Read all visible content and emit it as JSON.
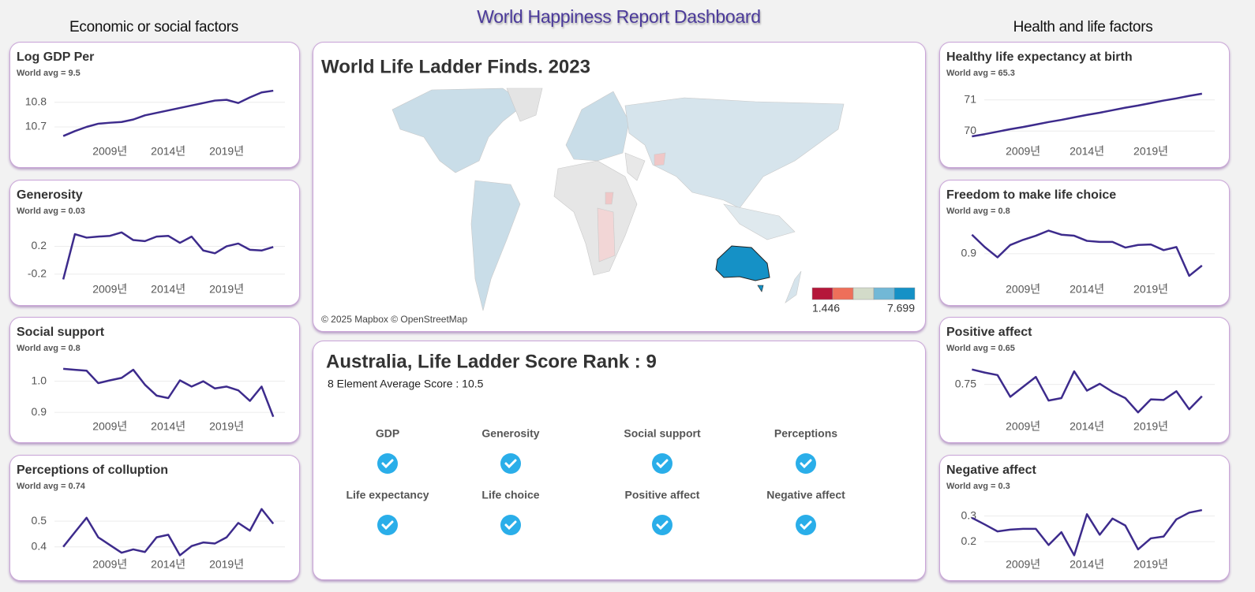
{
  "header": {
    "title": "World Happiness Report Dashboard",
    "left_section": "Economic or social factors",
    "right_section": "Health and life factors"
  },
  "chart_data": [
    {
      "type": "line",
      "title": "Log GDP Per",
      "subtitle": "World avg = 9.5",
      "color": "#3d2b8c",
      "x": [
        2005,
        2006,
        2007,
        2008,
        2009,
        2010,
        2011,
        2012,
        2013,
        2014,
        2015,
        2016,
        2017,
        2018,
        2019,
        2020,
        2021,
        2022,
        2023
      ],
      "values": [
        10.663,
        10.683,
        10.7,
        10.713,
        10.717,
        10.72,
        10.73,
        10.747,
        10.757,
        10.767,
        10.777,
        10.787,
        10.797,
        10.807,
        10.81,
        10.797,
        10.82,
        10.84,
        10.847
      ],
      "xlim": [
        2001,
        2024
      ],
      "ylim": [
        10.62,
        10.86
      ],
      "yticks": [
        10.7,
        10.8
      ],
      "xticks": [
        {
          "value": 2009,
          "label": "2009년"
        },
        {
          "value": 2014,
          "label": "2014년"
        },
        {
          "value": 2019,
          "label": "2019년"
        }
      ],
      "grid": true
    },
    {
      "type": "line",
      "title": "Generosity",
      "subtitle": "World avg = 0.03",
      "color": "#3d2b8c",
      "x": [
        2005,
        2006,
        2007,
        2008,
        2009,
        2010,
        2011,
        2012,
        2013,
        2014,
        2015,
        2016,
        2017,
        2018,
        2019,
        2020,
        2021,
        2022,
        2023
      ],
      "values": [
        -0.275,
        0.375,
        0.325,
        0.34,
        0.35,
        0.4,
        0.29,
        0.275,
        0.34,
        0.35,
        0.25,
        0.34,
        0.14,
        0.1,
        0.2,
        0.24,
        0.15,
        0.14,
        0.19
      ],
      "xlim": [
        2001,
        2024
      ],
      "ylim": [
        -0.35,
        0.5
      ],
      "yticks": [
        -0.2,
        0.2
      ],
      "xticks": [
        {
          "value": 2009,
          "label": "2009년"
        },
        {
          "value": 2014,
          "label": "2014년"
        },
        {
          "value": 2019,
          "label": "2019년"
        }
      ],
      "grid": true
    },
    {
      "type": "line",
      "title": "Social support",
      "subtitle": "World avg = 0.8",
      "color": "#3d2b8c",
      "x": [
        2005,
        2006,
        2007,
        2008,
        2009,
        2010,
        2011,
        2012,
        2013,
        2014,
        2015,
        2016,
        2017,
        2018,
        2019,
        2020,
        2021,
        2022,
        2023
      ],
      "values": [
        1.04,
        1.037,
        1.034,
        0.994,
        1.003,
        1.011,
        1.037,
        0.989,
        0.954,
        0.946,
        1.003,
        0.983,
        1.0,
        0.977,
        0.983,
        0.971,
        0.937,
        0.983,
        0.886
      ],
      "xlim": [
        2001,
        2024
      ],
      "ylim": [
        0.87,
        1.06
      ],
      "yticks": [
        0.9,
        {
          "value": 1,
          "label": "1.0"
        }
      ],
      "xticks": [
        {
          "value": 2009,
          "label": "2009년"
        },
        {
          "value": 2014,
          "label": "2014년"
        },
        {
          "value": 2019,
          "label": "2019년"
        }
      ],
      "grid": true
    },
    {
      "type": "line",
      "title": "Perceptions of colluption",
      "subtitle": "World avg = 0.74",
      "color": "#3d2b8c",
      "x": [
        2005,
        2006,
        2007,
        2008,
        2009,
        2010,
        2011,
        2012,
        2013,
        2014,
        2015,
        2016,
        2017,
        2018,
        2019,
        2020,
        2021,
        2022,
        2023
      ],
      "values": [
        0.4,
        0.457,
        0.513,
        0.437,
        0.407,
        0.377,
        0.39,
        0.38,
        0.437,
        0.447,
        0.367,
        0.403,
        0.417,
        0.413,
        0.437,
        0.493,
        0.463,
        0.547,
        0.49
      ],
      "xlim": [
        2001,
        2024
      ],
      "ylim": [
        0.35,
        0.58
      ],
      "yticks": [
        0.4,
        0.5
      ],
      "xticks": [
        {
          "value": 2009,
          "label": "2009년"
        },
        {
          "value": 2014,
          "label": "2014년"
        },
        {
          "value": 2019,
          "label": "2019년"
        }
      ],
      "grid": true
    },
    {
      "type": "line",
      "title": "Healthy life expectancy at birth",
      "subtitle": "World avg = 65.3",
      "color": "#3d2b8c",
      "x": [
        2005,
        2006,
        2007,
        2008,
        2009,
        2010,
        2011,
        2012,
        2013,
        2014,
        2015,
        2016,
        2017,
        2018,
        2019,
        2020,
        2021,
        2022,
        2023
      ],
      "values": [
        69.83,
        69.9,
        69.98,
        70.06,
        70.13,
        70.21,
        70.29,
        70.36,
        70.44,
        70.52,
        70.59,
        70.67,
        70.75,
        70.82,
        70.9,
        70.98,
        71.05,
        71.13,
        71.2
      ],
      "xlim": [
        2003,
        2024
      ],
      "ylim": [
        69.5,
        71.4
      ],
      "yticks": [
        70,
        71
      ],
      "xticks": [
        {
          "value": 2009,
          "label": "2009년"
        },
        {
          "value": 2014,
          "label": "2014년"
        },
        {
          "value": 2019,
          "label": "2019년"
        }
      ],
      "grid": true
    },
    {
      "type": "line",
      "title": "Freedom to make life choice",
      "subtitle": "World avg = 0.8",
      "color": "#3d2b8c",
      "x": [
        2005,
        2006,
        2007,
        2008,
        2009,
        2010,
        2011,
        2012,
        2013,
        2014,
        2015,
        2016,
        2017,
        2018,
        2019,
        2020,
        2021,
        2022,
        2023
      ],
      "values": [
        0.937,
        0.913,
        0.893,
        0.917,
        0.927,
        0.935,
        0.945,
        0.937,
        0.935,
        0.925,
        0.923,
        0.923,
        0.912,
        0.917,
        0.918,
        0.907,
        0.913,
        0.857,
        0.877
      ],
      "xlim": [
        2003,
        2024
      ],
      "ylim": [
        0.84,
        0.955
      ],
      "yticks": [
        0.9
      ],
      "xticks": [
        {
          "value": 2009,
          "label": "2009년"
        },
        {
          "value": 2014,
          "label": "2014년"
        },
        {
          "value": 2019,
          "label": "2019년"
        }
      ],
      "grid": true
    },
    {
      "type": "line",
      "title": "Positive affect",
      "subtitle": "World avg = 0.65",
      "color": "#3d2b8c",
      "x": [
        2005,
        2006,
        2007,
        2008,
        2009,
        2010,
        2011,
        2012,
        2013,
        2014,
        2015,
        2016,
        2017,
        2018,
        2019,
        2020,
        2021,
        2022,
        2023
      ],
      "values": [
        0.774,
        0.769,
        0.765,
        0.73,
        0.746,
        0.762,
        0.724,
        0.728,
        0.771,
        0.74,
        0.751,
        0.738,
        0.728,
        0.705,
        0.726,
        0.725,
        0.739,
        0.71,
        0.731
      ],
      "xlim": [
        2003,
        2024
      ],
      "ylim": [
        0.69,
        0.785
      ],
      "yticks": [
        0.75
      ],
      "xticks": [
        {
          "value": 2009,
          "label": "2009년"
        },
        {
          "value": 2014,
          "label": "2014년"
        },
        {
          "value": 2019,
          "label": "2019년"
        }
      ],
      "grid": true
    },
    {
      "type": "line",
      "title": "Negative affect",
      "subtitle": "World avg = 0.3",
      "color": "#3d2b8c",
      "x": [
        2005,
        2006,
        2007,
        2008,
        2009,
        2010,
        2011,
        2012,
        2013,
        2014,
        2015,
        2016,
        2017,
        2018,
        2019,
        2020,
        2021,
        2022,
        2023
      ],
      "values": [
        0.293,
        0.267,
        0.24,
        0.247,
        0.25,
        0.25,
        0.187,
        0.237,
        0.147,
        0.307,
        0.227,
        0.29,
        0.263,
        0.17,
        0.213,
        0.22,
        0.287,
        0.313,
        0.323
      ],
      "xlim": [
        2003,
        2024
      ],
      "ylim": [
        0.13,
        0.36
      ],
      "yticks": [
        0.2,
        0.3
      ],
      "xticks": [
        {
          "value": 2009,
          "label": "2009년"
        },
        {
          "value": 2014,
          "label": "2014년"
        },
        {
          "value": 2019,
          "label": "2019년"
        }
      ],
      "grid": true
    }
  ],
  "map": {
    "title": "World Life Ladder Finds. 2023",
    "credit": "© 2025 Mapbox © OpenStreetMap",
    "legend_min": "1.446",
    "legend_max": "7.699",
    "legend_colors": [
      "#b5173a",
      "#ee6f5a",
      "#d3dbc9",
      "#72b8d6",
      "#1591c6"
    ]
  },
  "rank": {
    "title": "Australia, Life Ladder Score Rank : 9",
    "subtitle": "8 Element Average Score : 10.5",
    "items": [
      "GDP",
      "Generosity",
      "Social support",
      "Perceptions",
      "Life expectancy",
      "Life choice",
      "Positive affect",
      "Negative affect"
    ]
  }
}
